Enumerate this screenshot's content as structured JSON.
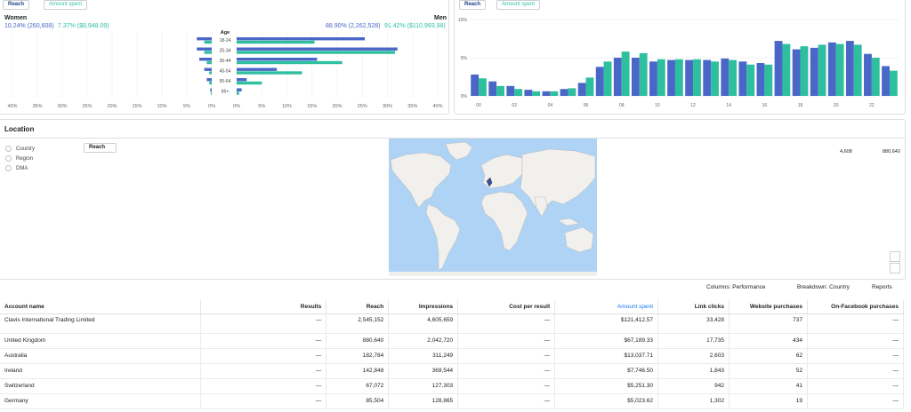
{
  "demographics": {
    "toggle": {
      "reach": "Reach",
      "amount": "Amount spent"
    },
    "women": {
      "title": "Women",
      "reach": "10.24% (260,608)",
      "amount": "7.37% ($8,948.09)"
    },
    "men": {
      "title": "Men",
      "reach": "88.90% (2,262,528)",
      "amount": "91.42% ($110,993.98)"
    },
    "age_header": "Age",
    "colors": {
      "reach": "#4a67c8",
      "amount": "#2ebf9f"
    }
  },
  "chart_data": [
    {
      "type": "bar",
      "title": "",
      "orientation": "horizontal",
      "categories": [
        "18-24",
        "25-34",
        "35-44",
        "45-54",
        "55-64",
        "65+"
      ],
      "women_axis_ticks": [
        "40%",
        "35%",
        "30%",
        "25%",
        "20%",
        "15%",
        "10%",
        "5%",
        "0%"
      ],
      "men_axis_ticks": [
        "0%",
        "5%",
        "10%",
        "15%",
        "20%",
        "25%",
        "30%",
        "35%",
        "40%"
      ],
      "xlim": [
        0,
        40
      ],
      "series": [
        {
          "name": "Reach",
          "women": [
            3,
            3,
            2.5,
            1.5,
            1,
            0.3
          ],
          "men": [
            25.5,
            32,
            16,
            8,
            2,
            1
          ]
        },
        {
          "name": "Amount spent",
          "women": [
            1.5,
            1.5,
            1,
            0.5,
            0.5,
            0.2
          ],
          "men": [
            15.5,
            31.5,
            21,
            13,
            5,
            0.5
          ]
        }
      ]
    },
    {
      "type": "bar",
      "title": "",
      "x_tick_labels": [
        "00",
        "02",
        "04",
        "06",
        "08",
        "10",
        "12",
        "14",
        "16",
        "18",
        "20",
        "22"
      ],
      "y_tick_labels": [
        "0%",
        "5%",
        "10%"
      ],
      "ylim": [
        0,
        10
      ],
      "categories": [
        "00",
        "01",
        "02",
        "03",
        "04",
        "05",
        "06",
        "07",
        "08",
        "09",
        "10",
        "11",
        "12",
        "13",
        "14",
        "15",
        "16",
        "17",
        "18",
        "19",
        "20",
        "21",
        "22",
        "23"
      ],
      "series": [
        {
          "name": "Reach",
          "values": [
            2.8,
            1.9,
            1.3,
            0.8,
            0.6,
            0.9,
            1.7,
            3.8,
            5.0,
            5.0,
            4.5,
            4.7,
            4.7,
            4.7,
            4.9,
            4.5,
            4.3,
            7.2,
            6.1,
            6.3,
            7.0,
            7.2,
            5.5,
            3.9
          ]
        },
        {
          "name": "Amount spent",
          "values": [
            2.3,
            1.3,
            0.9,
            0.6,
            0.6,
            1.0,
            2.4,
            4.5,
            5.8,
            5.6,
            4.8,
            4.8,
            4.8,
            4.5,
            4.7,
            4.1,
            4.1,
            6.8,
            6.5,
            6.7,
            6.8,
            6.7,
            5.0,
            3.3
          ]
        }
      ]
    }
  ],
  "hourly": {
    "toggle": {
      "reach": "Reach",
      "amount": "Amount spent"
    }
  },
  "location": {
    "title": "Location",
    "options": [
      "Country",
      "Region",
      "DMA"
    ],
    "metric_button": "Reach",
    "range_min": "4,608",
    "range_max": "880,640"
  },
  "table_toolbar": {
    "columns": "Columns: Performance",
    "breakdown": "Breakdown: Country",
    "reports": "Reports"
  },
  "table": {
    "headers": [
      "Account name",
      "Results",
      "Reach",
      "Impressions",
      "Cost per result",
      "Amount spent",
      "Link clicks",
      "Website purchases",
      "On-Facebook purchases"
    ],
    "rows": [
      [
        "Clavis International Trading Limited",
        "—",
        "2,545,152",
        "4,605,659",
        "—",
        "$121,412.57",
        "33,428",
        "737",
        "—"
      ],
      [
        "United Kingdom",
        "—",
        "880,640",
        "2,042,720",
        "—",
        "$67,189.33",
        "17,735",
        "434",
        "—"
      ],
      [
        "Australia",
        "—",
        "182,784",
        "311,249",
        "—",
        "$13,037.71",
        "2,603",
        "62",
        "—"
      ],
      [
        "Ireland",
        "—",
        "142,848",
        "369,544",
        "—",
        "$7,746.50",
        "1,843",
        "52",
        "—"
      ],
      [
        "Switzerland",
        "—",
        "67,072",
        "127,303",
        "—",
        "$5,251.30",
        "942",
        "41",
        "—"
      ],
      [
        "Germany",
        "—",
        "85,504",
        "128,865",
        "—",
        "$5,023.62",
        "1,302",
        "19",
        "—"
      ]
    ]
  }
}
